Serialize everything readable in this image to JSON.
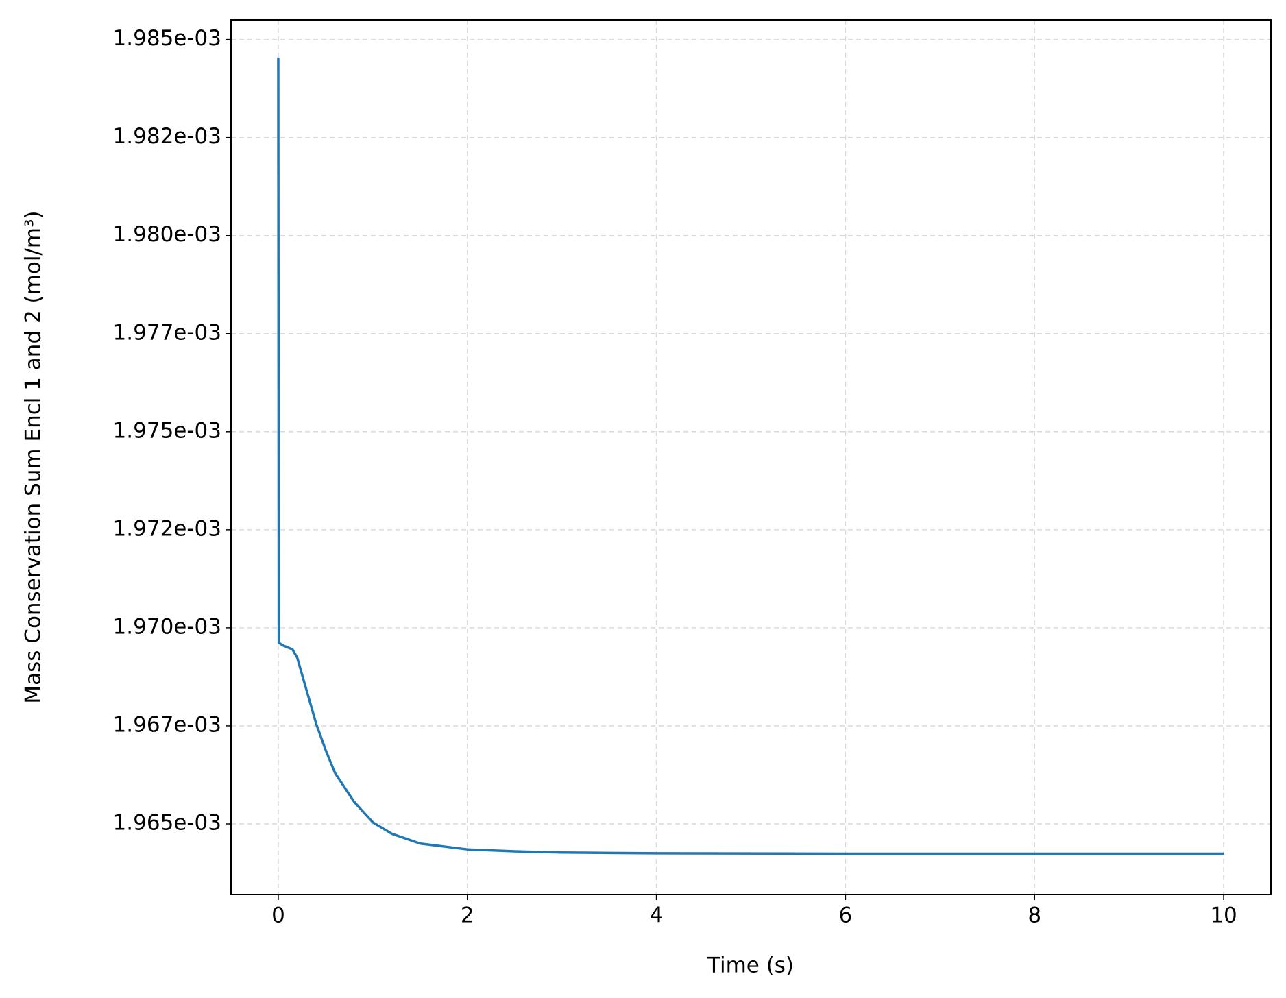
{
  "chart_data": {
    "type": "line",
    "xlabel": "Time (s)",
    "ylabel": "Mass Conservation Sum Encl 1 and 2 (mol/m³)",
    "x": [
      0,
      0.005,
      0.05,
      0.1,
      0.15,
      0.2,
      0.3,
      0.4,
      0.5,
      0.6,
      0.8,
      1.0,
      1.2,
      1.5,
      2,
      2.5,
      3,
      4,
      6,
      8,
      10
    ],
    "series": [
      {
        "color": "#1f77b4",
        "values": [
          0.00198454,
          0.00196962,
          0.00196955,
          0.0019695,
          0.00196945,
          0.00196924,
          0.0019684,
          0.00196756,
          0.00196689,
          0.0019663,
          0.00196557,
          0.00196504,
          0.00196475,
          0.0019645,
          0.00196435,
          0.0019643,
          0.00196427,
          0.00196425,
          0.00196424,
          0.00196424,
          0.00196424
        ]
      }
    ],
    "xlim": [
      -0.5,
      10.5
    ],
    "xticks": [
      0,
      2,
      4,
      6,
      8,
      10
    ],
    "ylim": [
      0.0019632,
      0.0019855
    ],
    "yticks": [
      {
        "value": 0.001965,
        "label": "1.965e-03"
      },
      {
        "value": 0.0019675,
        "label": "1.967e-03"
      },
      {
        "value": 0.00197,
        "label": "1.970e-03"
      },
      {
        "value": 0.0019725,
        "label": "1.972e-03"
      },
      {
        "value": 0.001975,
        "label": "1.975e-03"
      },
      {
        "value": 0.0019775,
        "label": "1.977e-03"
      },
      {
        "value": 0.00198,
        "label": "1.980e-03"
      },
      {
        "value": 0.0019825,
        "label": "1.982e-03"
      },
      {
        "value": 0.001985,
        "label": "1.985e-03"
      }
    ],
    "grid": true
  }
}
